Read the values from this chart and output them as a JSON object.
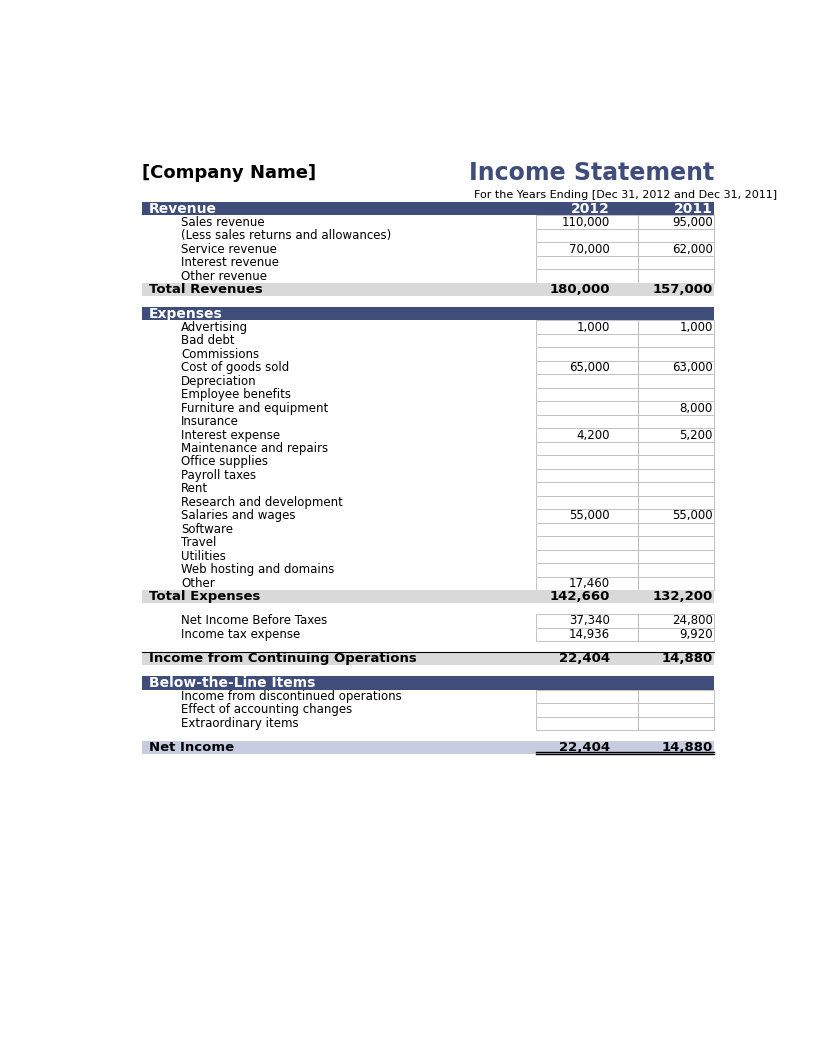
{
  "company_name": "[Company Name]",
  "title": "Income Statement",
  "subtitle": "For the Years Ending [Dec 31, 2012 and Dec 31, 2011]",
  "header_bg": "#3E4D7A",
  "header_fg": "#FFFFFF",
  "total_bg": "#D9D9D9",
  "income_ops_bg": "#D9D9D9",
  "net_income_bg": "#C8CCE0",
  "col2012": "2012",
  "col2011": "2011",
  "page_bg": "#FFFFFF",
  "sections": [
    {
      "type": "header",
      "label": "Revenue",
      "show_cols": true
    },
    {
      "type": "item",
      "label": "Sales revenue",
      "val2012": "110,000",
      "val2011": "95,000"
    },
    {
      "type": "item",
      "label": "(Less sales returns and allowances)",
      "val2012": "",
      "val2011": ""
    },
    {
      "type": "item",
      "label": "Service revenue",
      "val2012": "70,000",
      "val2011": "62,000"
    },
    {
      "type": "item",
      "label": "Interest revenue",
      "val2012": "",
      "val2011": ""
    },
    {
      "type": "item",
      "label": "Other revenue",
      "val2012": "",
      "val2011": ""
    },
    {
      "type": "total",
      "label": "Total Revenues",
      "val2012": "180,000",
      "val2011": "157,000"
    },
    {
      "type": "spacer",
      "size": 0.8
    },
    {
      "type": "header",
      "label": "Expenses",
      "show_cols": false
    },
    {
      "type": "item",
      "label": "Advertising",
      "val2012": "1,000",
      "val2011": "1,000"
    },
    {
      "type": "item",
      "label": "Bad debt",
      "val2012": "",
      "val2011": ""
    },
    {
      "type": "item",
      "label": "Commissions",
      "val2012": "",
      "val2011": ""
    },
    {
      "type": "item",
      "label": "Cost of goods sold",
      "val2012": "65,000",
      "val2011": "63,000"
    },
    {
      "type": "item",
      "label": "Depreciation",
      "val2012": "",
      "val2011": ""
    },
    {
      "type": "item",
      "label": "Employee benefits",
      "val2012": "",
      "val2011": ""
    },
    {
      "type": "item",
      "label": "Furniture and equipment",
      "val2012": "",
      "val2011": "8,000"
    },
    {
      "type": "item",
      "label": "Insurance",
      "val2012": "",
      "val2011": ""
    },
    {
      "type": "item",
      "label": "Interest expense",
      "val2012": "4,200",
      "val2011": "5,200"
    },
    {
      "type": "item",
      "label": "Maintenance and repairs",
      "val2012": "",
      "val2011": ""
    },
    {
      "type": "item",
      "label": "Office supplies",
      "val2012": "",
      "val2011": ""
    },
    {
      "type": "item",
      "label": "Payroll taxes",
      "val2012": "",
      "val2011": ""
    },
    {
      "type": "item",
      "label": "Rent",
      "val2012": "",
      "val2011": ""
    },
    {
      "type": "item",
      "label": "Research and development",
      "val2012": "",
      "val2011": ""
    },
    {
      "type": "item",
      "label": "Salaries and wages",
      "val2012": "55,000",
      "val2011": "55,000"
    },
    {
      "type": "item",
      "label": "Software",
      "val2012": "",
      "val2011": ""
    },
    {
      "type": "item",
      "label": "Travel",
      "val2012": "",
      "val2011": ""
    },
    {
      "type": "item",
      "label": "Utilities",
      "val2012": "",
      "val2011": ""
    },
    {
      "type": "item",
      "label": "Web hosting and domains",
      "val2012": "",
      "val2011": ""
    },
    {
      "type": "item",
      "label": "Other",
      "val2012": "17,460",
      "val2011": ""
    },
    {
      "type": "total",
      "label": "Total Expenses",
      "val2012": "142,660",
      "val2011": "132,200"
    },
    {
      "type": "spacer",
      "size": 0.8
    },
    {
      "type": "item_plain",
      "label": "Net Income Before Taxes",
      "val2012": "37,340",
      "val2011": "24,800"
    },
    {
      "type": "item_plain",
      "label": "Income tax expense",
      "val2012": "14,936",
      "val2011": "9,920"
    },
    {
      "type": "spacer",
      "size": 0.8
    },
    {
      "type": "income_ops",
      "label": "Income from Continuing Operations",
      "val2012": "22,404",
      "val2011": "14,880"
    },
    {
      "type": "spacer",
      "size": 0.8
    },
    {
      "type": "header",
      "label": "Below-the-Line Items",
      "show_cols": false
    },
    {
      "type": "item",
      "label": "Income from discontinued operations",
      "val2012": "",
      "val2011": ""
    },
    {
      "type": "item",
      "label": "Effect of accounting changes",
      "val2012": "",
      "val2011": ""
    },
    {
      "type": "item",
      "label": "Extraordinary items",
      "val2012": "",
      "val2011": ""
    },
    {
      "type": "spacer",
      "size": 0.8
    },
    {
      "type": "net_income",
      "label": "Net Income",
      "val2012": "22,404",
      "val2011": "14,880"
    }
  ]
}
